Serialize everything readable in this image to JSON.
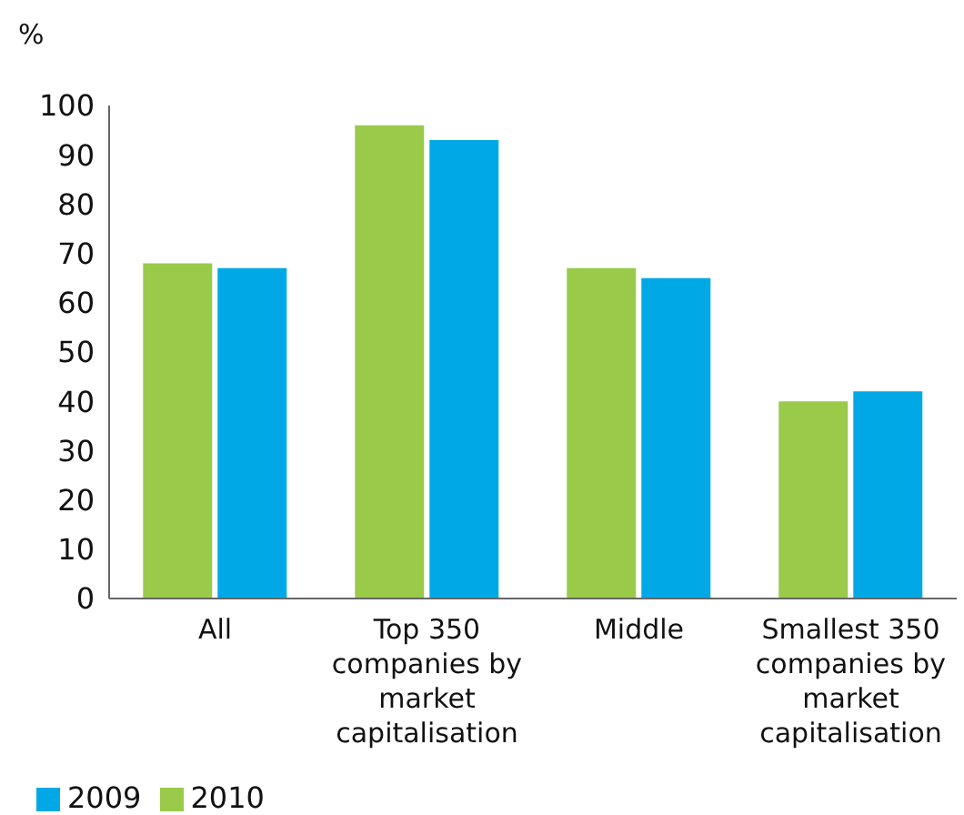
{
  "chart_data": {
    "type": "bar",
    "ylabel": "%",
    "categories": [
      "All",
      "Top 350 companies by market capitalisation",
      "Middle",
      "Smallest 350 companies by market capitalisation"
    ],
    "series": [
      {
        "name": "2010",
        "color": "#99ca4a",
        "values": [
          68,
          96,
          67,
          40
        ]
      },
      {
        "name": "2009",
        "color": "#00a9e6",
        "values": [
          67,
          93,
          65,
          42
        ]
      }
    ],
    "ylim": [
      0,
      100
    ],
    "yticks": [
      0,
      10,
      20,
      30,
      40,
      50,
      60,
      70,
      80,
      90,
      100
    ],
    "grid": false,
    "legend": "bottom left"
  }
}
